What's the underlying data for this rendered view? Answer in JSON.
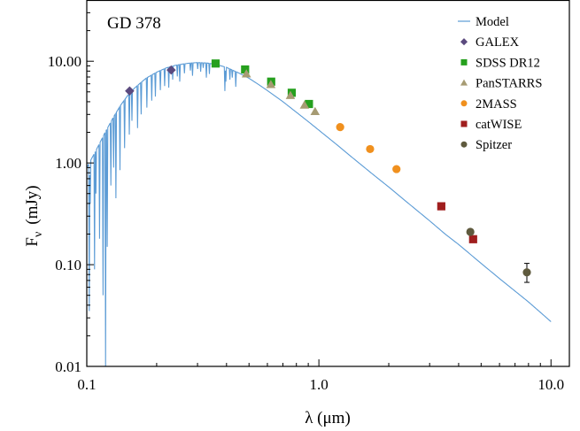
{
  "chart_data": {
    "type": "scatter",
    "title": "GD 378",
    "xlabel": "λ (μm)",
    "ylabel_main": "F",
    "ylabel_sub": "ν",
    "ylabel_unit": "(mJy)",
    "xscale": "log",
    "yscale": "log",
    "xlim": [
      0.1,
      12.0
    ],
    "ylim": [
      0.01,
      40.0
    ],
    "x_ticks": [
      0.1,
      1.0,
      10.0
    ],
    "x_tick_labels": [
      "0.1",
      "1.0",
      "10.0"
    ],
    "y_ticks": [
      0.01,
      0.1,
      1.0,
      10.0
    ],
    "y_tick_labels": [
      "0.01",
      "0.10",
      "1.00",
      "10.00"
    ],
    "grid": false,
    "legend_position": "top-right",
    "series": [
      {
        "name": "Model",
        "kind": "line",
        "color": "#5b9bd5",
        "x": [
          0.1,
          0.11,
          0.12,
          0.13,
          0.14,
          0.15,
          0.16,
          0.17,
          0.18,
          0.19,
          0.2,
          0.22,
          0.24,
          0.26,
          0.28,
          0.3,
          0.33,
          0.36,
          0.4,
          0.45,
          0.5,
          0.55,
          0.6,
          0.7,
          0.8,
          0.9,
          1.0,
          1.2,
          1.4,
          1.7,
          2.0,
          2.5,
          3.0,
          3.5,
          4.0,
          5.0,
          6.0,
          7.0,
          8.0,
          9.0,
          10.0
        ],
        "y": [
          0.9,
          1.35,
          2.0,
          2.8,
          3.7,
          4.6,
          5.4,
          6.1,
          6.8,
          7.3,
          7.8,
          8.6,
          9.1,
          9.4,
          9.6,
          9.7,
          9.6,
          9.3,
          8.7,
          7.7,
          6.8,
          5.9,
          5.15,
          4.0,
          3.15,
          2.55,
          2.1,
          1.5,
          1.12,
          0.78,
          0.58,
          0.38,
          0.27,
          0.2,
          0.158,
          0.103,
          0.073,
          0.055,
          0.043,
          0.034,
          0.0275
        ],
        "absorption_lines": [
          {
            "x": 0.1025,
            "y": 0.035
          },
          {
            "x": 0.1035,
            "y": 0.4
          },
          {
            "x": 0.108,
            "y": 0.09
          },
          {
            "x": 0.1095,
            "y": 0.5
          },
          {
            "x": 0.1135,
            "y": 0.18
          },
          {
            "x": 0.1175,
            "y": 0.05
          },
          {
            "x": 0.1205,
            "y": 0.01
          },
          {
            "x": 0.1225,
            "y": 0.15
          },
          {
            "x": 0.127,
            "y": 0.6
          },
          {
            "x": 0.1305,
            "y": 0.9
          },
          {
            "x": 0.1335,
            "y": 0.45
          },
          {
            "x": 0.139,
            "y": 0.85
          },
          {
            "x": 0.1455,
            "y": 1.4
          },
          {
            "x": 0.1525,
            "y": 1.9
          },
          {
            "x": 0.1565,
            "y": 2.6
          },
          {
            "x": 0.1655,
            "y": 2.2
          },
          {
            "x": 0.1715,
            "y": 3.0
          },
          {
            "x": 0.1815,
            "y": 3.5
          },
          {
            "x": 0.1905,
            "y": 4.1
          },
          {
            "x": 0.1975,
            "y": 4.5
          },
          {
            "x": 0.2075,
            "y": 5.2
          },
          {
            "x": 0.2165,
            "y": 5.7
          },
          {
            "x": 0.2255,
            "y": 5.5
          },
          {
            "x": 0.2345,
            "y": 6.6
          },
          {
            "x": 0.2455,
            "y": 7.1
          },
          {
            "x": 0.2515,
            "y": 6.3
          },
          {
            "x": 0.2635,
            "y": 7.6
          },
          {
            "x": 0.2795,
            "y": 8.1
          },
          {
            "x": 0.2855,
            "y": 7.2
          },
          {
            "x": 0.3005,
            "y": 8.4
          },
          {
            "x": 0.3095,
            "y": 7.9
          },
          {
            "x": 0.3175,
            "y": 8.6
          },
          {
            "x": 0.3275,
            "y": 6.9
          },
          {
            "x": 0.3375,
            "y": 7.5
          },
          {
            "x": 0.3935,
            "y": 5.1
          },
          {
            "x": 0.3975,
            "y": 6.3
          },
          {
            "x": 0.4135,
            "y": 6.6
          },
          {
            "x": 0.4235,
            "y": 6.9
          },
          {
            "x": 0.4385,
            "y": 5.6
          }
        ]
      },
      {
        "name": "GALEX",
        "kind": "points",
        "marker": "diamond",
        "color": "#5b4a7e",
        "x": [
          0.153,
          0.231
        ],
        "y": [
          5.1,
          8.2
        ]
      },
      {
        "name": "SDSS DR12",
        "kind": "points",
        "marker": "square",
        "color": "#26a01e",
        "x": [
          0.359,
          0.481,
          0.623,
          0.764,
          0.906
        ],
        "y": [
          9.5,
          8.3,
          6.3,
          4.9,
          3.8
        ]
      },
      {
        "name": "PanSTARRS",
        "kind": "points",
        "marker": "triangle",
        "color": "#a69b73",
        "x": [
          0.487,
          0.621,
          0.754,
          0.867,
          0.963
        ],
        "y": [
          7.5,
          5.9,
          4.6,
          3.7,
          3.2
        ]
      },
      {
        "name": "2MASS",
        "kind": "points",
        "marker": "circle",
        "color": "#f0901e",
        "x": [
          1.235,
          1.662,
          2.159
        ],
        "y": [
          2.25,
          1.37,
          0.87
        ]
      },
      {
        "name": "catWISE",
        "kind": "points",
        "marker": "square",
        "color": "#a01e1e",
        "x": [
          3.368,
          4.618
        ],
        "y": [
          0.375,
          0.178
        ]
      },
      {
        "name": "Spitzer",
        "kind": "points",
        "marker": "circle",
        "color": "#5f5a3e",
        "x": [
          4.493,
          7.872
        ],
        "y": [
          0.21,
          0.084
        ],
        "yerr_low": [
          0.0,
          0.017
        ],
        "yerr_high": [
          0.0,
          0.019
        ]
      }
    ]
  }
}
